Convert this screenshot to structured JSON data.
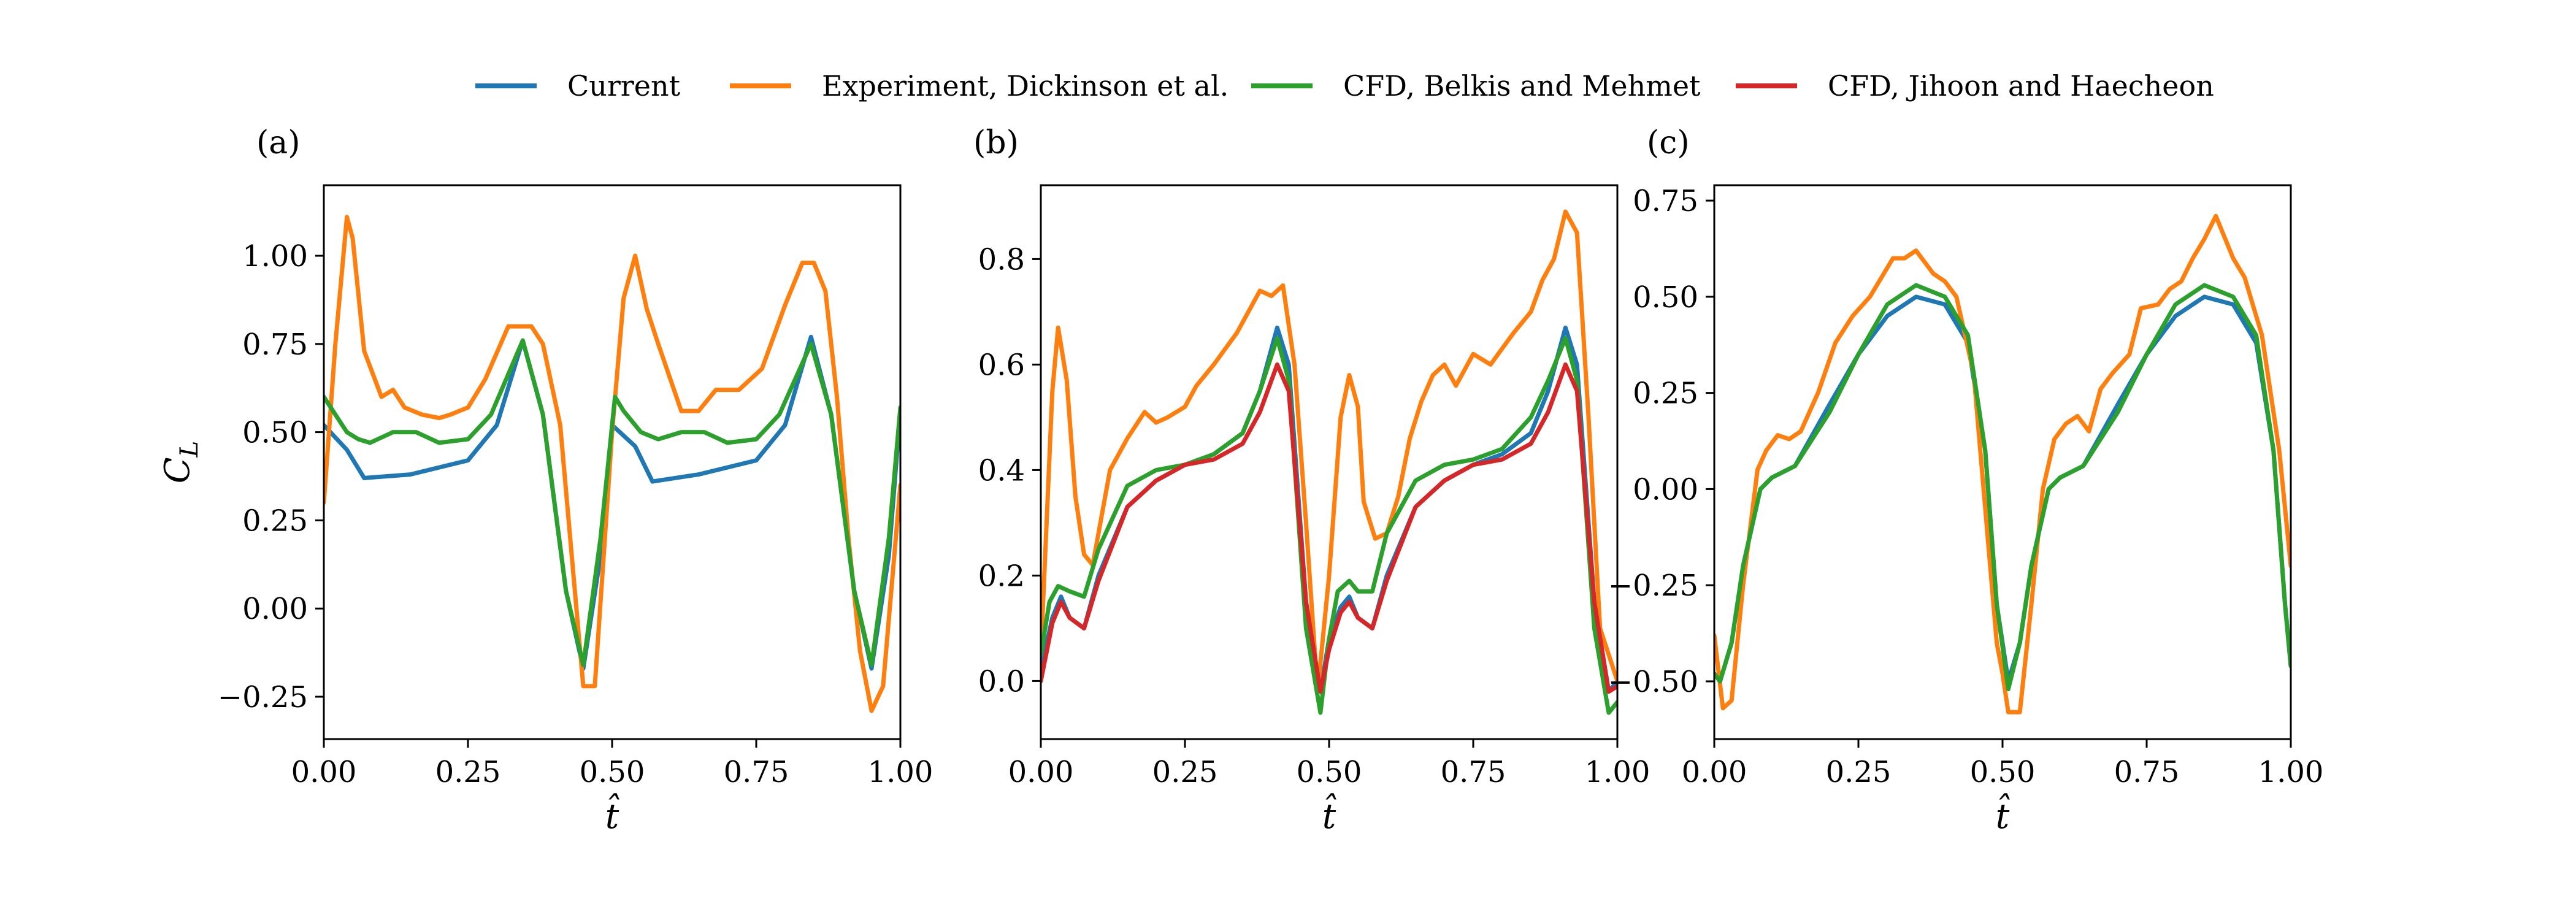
{
  "figure": {
    "legend": [
      {
        "name": "Current",
        "color": "#1f77b4"
      },
      {
        "name": "Experiment, Dickinson et al.",
        "color": "#ff7f0e"
      },
      {
        "name": "CFD, Belkis and Mehmet",
        "color": "#2ca02c"
      },
      {
        "name": "CFD, Jihoon and Haecheon",
        "color": "#d62728"
      }
    ],
    "legend_placement": "top-center"
  },
  "chart_data": [
    {
      "type": "line",
      "panel_label": "(a)",
      "xlabel": "t̂",
      "ylabel": "C_L",
      "xlim": [
        0,
        1
      ],
      "ylim": [
        -0.37,
        1.2
      ],
      "xticks": [
        "0.00",
        "0.25",
        "0.50",
        "0.75",
        "1.00"
      ],
      "yticks": [
        "−0.25",
        "0.00",
        "0.25",
        "0.50",
        "0.75",
        "1.00"
      ],
      "ytick_values": [
        -0.25,
        0.0,
        0.25,
        0.5,
        0.75,
        1.0
      ],
      "grid": false,
      "series": [
        {
          "name": "Current",
          "color": "#1f77b4",
          "x": [
            0.0,
            0.04,
            0.07,
            0.15,
            0.25,
            0.3,
            0.345,
            0.38,
            0.42,
            0.45,
            0.48,
            0.5,
            0.54,
            0.57,
            0.65,
            0.75,
            0.8,
            0.845,
            0.88,
            0.92,
            0.95,
            0.98,
            1.0
          ],
          "y": [
            0.52,
            0.45,
            0.37,
            0.38,
            0.42,
            0.52,
            0.76,
            0.55,
            0.05,
            -0.17,
            0.15,
            0.52,
            0.46,
            0.36,
            0.38,
            0.42,
            0.52,
            0.77,
            0.55,
            0.05,
            -0.17,
            0.15,
            0.56
          ]
        },
        {
          "name": "Experiment, Dickinson et al.",
          "color": "#ff7f0e",
          "x": [
            0.0,
            0.02,
            0.04,
            0.05,
            0.07,
            0.1,
            0.12,
            0.14,
            0.17,
            0.2,
            0.22,
            0.25,
            0.28,
            0.32,
            0.36,
            0.38,
            0.41,
            0.43,
            0.45,
            0.47,
            0.5,
            0.52,
            0.54,
            0.56,
            0.58,
            0.62,
            0.65,
            0.68,
            0.72,
            0.76,
            0.8,
            0.83,
            0.85,
            0.87,
            0.89,
            0.91,
            0.93,
            0.95,
            0.97,
            1.0
          ],
          "y": [
            0.3,
            0.75,
            1.11,
            1.05,
            0.73,
            0.6,
            0.62,
            0.57,
            0.55,
            0.54,
            0.55,
            0.57,
            0.65,
            0.8,
            0.8,
            0.75,
            0.52,
            0.15,
            -0.22,
            -0.22,
            0.5,
            0.88,
            1.0,
            0.85,
            0.75,
            0.56,
            0.56,
            0.62,
            0.62,
            0.68,
            0.86,
            0.98,
            0.98,
            0.9,
            0.6,
            0.2,
            -0.12,
            -0.29,
            -0.22,
            0.35
          ]
        },
        {
          "name": "CFD, Belkis and Mehmet",
          "color": "#2ca02c",
          "x": [
            0.0,
            0.02,
            0.04,
            0.06,
            0.08,
            0.12,
            0.16,
            0.2,
            0.25,
            0.29,
            0.345,
            0.38,
            0.42,
            0.45,
            0.48,
            0.505,
            0.52,
            0.55,
            0.58,
            0.62,
            0.66,
            0.7,
            0.75,
            0.79,
            0.845,
            0.88,
            0.92,
            0.95,
            0.98,
            1.0
          ],
          "y": [
            0.6,
            0.55,
            0.5,
            0.48,
            0.47,
            0.5,
            0.5,
            0.47,
            0.48,
            0.55,
            0.76,
            0.55,
            0.05,
            -0.16,
            0.2,
            0.6,
            0.56,
            0.5,
            0.48,
            0.5,
            0.5,
            0.47,
            0.48,
            0.55,
            0.75,
            0.55,
            0.05,
            -0.16,
            0.2,
            0.57
          ]
        }
      ]
    },
    {
      "type": "line",
      "panel_label": "(b)",
      "xlabel": "t̂",
      "ylabel": "",
      "xlim": [
        0,
        1
      ],
      "ylim": [
        -0.11,
        0.94
      ],
      "xticks": [
        "0.00",
        "0.25",
        "0.50",
        "0.75",
        "1.00"
      ],
      "yticks": [
        "0.0",
        "0.2",
        "0.4",
        "0.6",
        "0.8"
      ],
      "ytick_values": [
        0.0,
        0.2,
        0.4,
        0.6,
        0.8
      ],
      "grid": false,
      "series": [
        {
          "name": "Current",
          "color": "#1f77b4",
          "x": [
            0.0,
            0.02,
            0.035,
            0.05,
            0.075,
            0.1,
            0.15,
            0.2,
            0.25,
            0.3,
            0.35,
            0.38,
            0.41,
            0.43,
            0.46,
            0.485,
            0.5,
            0.52,
            0.535,
            0.55,
            0.575,
            0.6,
            0.65,
            0.7,
            0.75,
            0.8,
            0.85,
            0.88,
            0.91,
            0.93,
            0.96,
            0.985,
            1.0
          ],
          "y": [
            0.02,
            0.12,
            0.16,
            0.12,
            0.1,
            0.2,
            0.33,
            0.38,
            0.41,
            0.43,
            0.47,
            0.55,
            0.67,
            0.6,
            0.15,
            -0.02,
            0.08,
            0.14,
            0.16,
            0.12,
            0.1,
            0.2,
            0.33,
            0.38,
            0.41,
            0.43,
            0.47,
            0.55,
            0.67,
            0.6,
            0.15,
            -0.02,
            0.0
          ]
        },
        {
          "name": "Experiment, Dickinson et al.",
          "color": "#ff7f0e",
          "x": [
            0.0,
            0.02,
            0.03,
            0.045,
            0.06,
            0.075,
            0.09,
            0.12,
            0.15,
            0.18,
            0.2,
            0.22,
            0.25,
            0.27,
            0.3,
            0.32,
            0.34,
            0.36,
            0.38,
            0.4,
            0.42,
            0.44,
            0.46,
            0.48,
            0.5,
            0.52,
            0.535,
            0.55,
            0.56,
            0.58,
            0.6,
            0.62,
            0.64,
            0.66,
            0.68,
            0.7,
            0.72,
            0.75,
            0.78,
            0.8,
            0.82,
            0.85,
            0.87,
            0.89,
            0.91,
            0.93,
            0.95,
            0.97,
            1.0
          ],
          "y": [
            0.05,
            0.55,
            0.67,
            0.57,
            0.35,
            0.24,
            0.22,
            0.4,
            0.46,
            0.51,
            0.49,
            0.5,
            0.52,
            0.56,
            0.6,
            0.63,
            0.66,
            0.7,
            0.74,
            0.73,
            0.75,
            0.6,
            0.3,
            -0.02,
            0.2,
            0.5,
            0.58,
            0.52,
            0.34,
            0.27,
            0.28,
            0.35,
            0.46,
            0.53,
            0.58,
            0.6,
            0.56,
            0.62,
            0.6,
            0.63,
            0.66,
            0.7,
            0.76,
            0.8,
            0.89,
            0.85,
            0.5,
            0.1,
            0.0
          ]
        },
        {
          "name": "CFD, Belkis and Mehmet",
          "color": "#2ca02c",
          "x": [
            0.0,
            0.015,
            0.03,
            0.05,
            0.075,
            0.1,
            0.15,
            0.2,
            0.25,
            0.3,
            0.35,
            0.38,
            0.41,
            0.43,
            0.46,
            0.485,
            0.5,
            0.515,
            0.535,
            0.55,
            0.575,
            0.6,
            0.65,
            0.7,
            0.75,
            0.8,
            0.85,
            0.88,
            0.91,
            0.93,
            0.96,
            0.985,
            1.0
          ],
          "y": [
            0.05,
            0.15,
            0.18,
            0.17,
            0.16,
            0.25,
            0.37,
            0.4,
            0.41,
            0.43,
            0.47,
            0.55,
            0.65,
            0.57,
            0.1,
            -0.06,
            0.08,
            0.17,
            0.19,
            0.17,
            0.17,
            0.28,
            0.38,
            0.41,
            0.42,
            0.44,
            0.5,
            0.57,
            0.65,
            0.57,
            0.1,
            -0.06,
            -0.04
          ]
        },
        {
          "name": "CFD, Jihoon and Haecheon",
          "color": "#d62728",
          "x": [
            0.0,
            0.02,
            0.035,
            0.05,
            0.075,
            0.1,
            0.15,
            0.2,
            0.25,
            0.3,
            0.35,
            0.38,
            0.41,
            0.43,
            0.46,
            0.485,
            0.5,
            0.52,
            0.535,
            0.55,
            0.575,
            0.6,
            0.65,
            0.7,
            0.75,
            0.8,
            0.85,
            0.88,
            0.91,
            0.93,
            0.96,
            0.985,
            1.0
          ],
          "y": [
            0.0,
            0.11,
            0.15,
            0.12,
            0.1,
            0.19,
            0.33,
            0.38,
            0.41,
            0.42,
            0.45,
            0.51,
            0.6,
            0.55,
            0.15,
            -0.02,
            0.06,
            0.13,
            0.15,
            0.12,
            0.1,
            0.19,
            0.33,
            0.38,
            0.41,
            0.42,
            0.45,
            0.51,
            0.6,
            0.55,
            0.15,
            -0.02,
            -0.01
          ]
        }
      ]
    },
    {
      "type": "line",
      "panel_label": "(c)",
      "xlabel": "t̂",
      "ylabel": "",
      "xlim": [
        0,
        1
      ],
      "ylim": [
        -0.65,
        0.79
      ],
      "xticks": [
        "0.00",
        "0.25",
        "0.50",
        "0.75",
        "1.00"
      ],
      "yticks": [
        "−0.50",
        "−0.25",
        "0.00",
        "0.25",
        "0.50",
        "0.75"
      ],
      "ytick_values": [
        -0.5,
        -0.25,
        0.0,
        0.25,
        0.5,
        0.75
      ],
      "grid": false,
      "series": [
        {
          "name": "Current",
          "color": "#1f77b4",
          "x": [
            0.0,
            0.01,
            0.03,
            0.05,
            0.08,
            0.1,
            0.14,
            0.2,
            0.25,
            0.3,
            0.35,
            0.4,
            0.44,
            0.47,
            0.49,
            0.51,
            0.53,
            0.55,
            0.58,
            0.6,
            0.64,
            0.7,
            0.75,
            0.8,
            0.85,
            0.9,
            0.94,
            0.97,
            0.99,
            1.0
          ],
          "y": [
            -0.48,
            -0.5,
            -0.4,
            -0.2,
            0.0,
            0.03,
            0.06,
            0.22,
            0.35,
            0.45,
            0.5,
            0.48,
            0.38,
            0.1,
            -0.3,
            -0.5,
            -0.4,
            -0.2,
            0.0,
            0.03,
            0.06,
            0.22,
            0.35,
            0.45,
            0.5,
            0.48,
            0.38,
            0.1,
            -0.3,
            -0.46
          ]
        },
        {
          "name": "Experiment, Dickinson et al.",
          "color": "#ff7f0e",
          "x": [
            0.0,
            0.015,
            0.03,
            0.05,
            0.075,
            0.09,
            0.11,
            0.13,
            0.15,
            0.18,
            0.21,
            0.24,
            0.27,
            0.29,
            0.31,
            0.33,
            0.35,
            0.38,
            0.4,
            0.42,
            0.45,
            0.47,
            0.49,
            0.5,
            0.51,
            0.53,
            0.55,
            0.57,
            0.59,
            0.61,
            0.63,
            0.65,
            0.67,
            0.69,
            0.72,
            0.74,
            0.77,
            0.79,
            0.81,
            0.83,
            0.85,
            0.87,
            0.9,
            0.92,
            0.95,
            0.98,
            1.0
          ],
          "y": [
            -0.38,
            -0.57,
            -0.55,
            -0.25,
            0.05,
            0.1,
            0.14,
            0.13,
            0.15,
            0.25,
            0.38,
            0.45,
            0.5,
            0.55,
            0.6,
            0.6,
            0.62,
            0.56,
            0.54,
            0.5,
            0.3,
            -0.05,
            -0.4,
            -0.48,
            -0.58,
            -0.58,
            -0.3,
            0.0,
            0.13,
            0.17,
            0.19,
            0.15,
            0.26,
            0.3,
            0.35,
            0.47,
            0.48,
            0.52,
            0.54,
            0.6,
            0.65,
            0.71,
            0.6,
            0.55,
            0.4,
            0.1,
            -0.2
          ]
        },
        {
          "name": "CFD, Belkis and Mehmet",
          "color": "#2ca02c",
          "x": [
            0.0,
            0.01,
            0.03,
            0.05,
            0.08,
            0.1,
            0.14,
            0.2,
            0.25,
            0.3,
            0.35,
            0.4,
            0.44,
            0.47,
            0.49,
            0.51,
            0.53,
            0.55,
            0.58,
            0.6,
            0.64,
            0.7,
            0.75,
            0.8,
            0.85,
            0.9,
            0.94,
            0.97,
            0.99,
            1.0
          ],
          "y": [
            -0.48,
            -0.5,
            -0.4,
            -0.2,
            0.0,
            0.03,
            0.06,
            0.2,
            0.35,
            0.48,
            0.53,
            0.5,
            0.4,
            0.1,
            -0.3,
            -0.52,
            -0.4,
            -0.2,
            0.0,
            0.03,
            0.06,
            0.2,
            0.35,
            0.48,
            0.53,
            0.5,
            0.4,
            0.1,
            -0.3,
            -0.46
          ]
        }
      ]
    }
  ]
}
